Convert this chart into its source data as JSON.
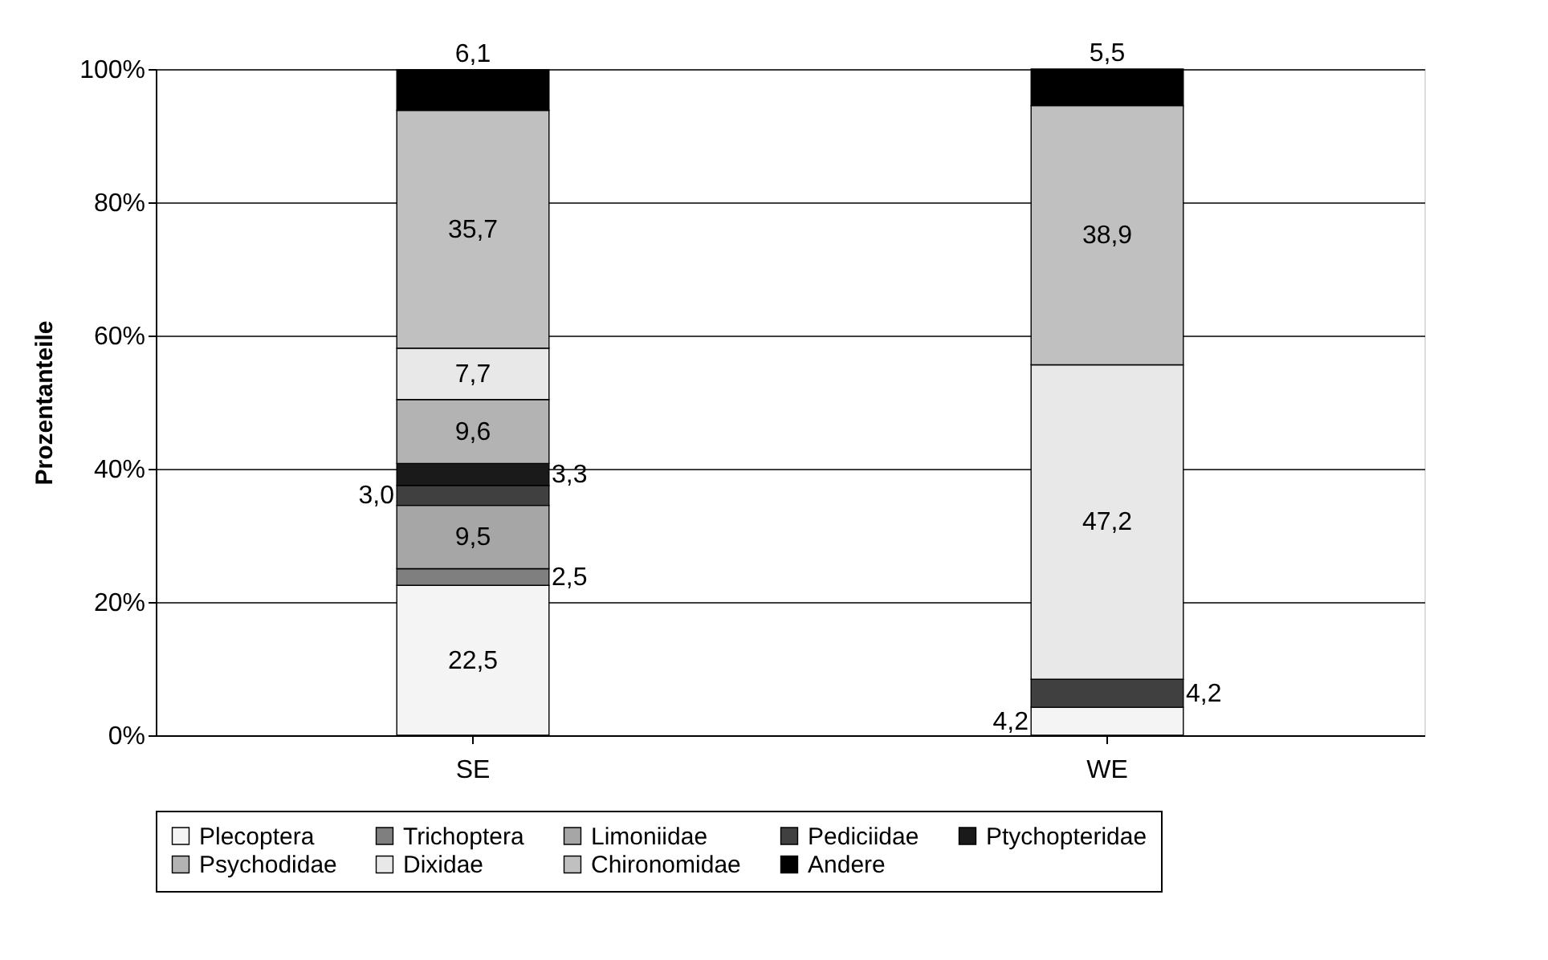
{
  "chart_data": {
    "type": "bar",
    "stacked": true,
    "ylabel": "Prozentanteile",
    "categories": [
      "SE",
      "WE"
    ],
    "series": [
      {
        "name": "Plecoptera",
        "color": "#f4f4f4",
        "values": [
          22.5,
          4.2
        ],
        "value_labels": [
          "22,5",
          "4,2"
        ]
      },
      {
        "name": "Trichoptera",
        "color": "#7f7f7f",
        "values": [
          2.5,
          null
        ],
        "value_labels": [
          "2,5",
          null
        ]
      },
      {
        "name": "Limoniidae",
        "color": "#a6a6a6",
        "values": [
          9.5,
          null
        ],
        "value_labels": [
          "9,5",
          null
        ]
      },
      {
        "name": "Pediciidae",
        "color": "#404040",
        "values": [
          3.0,
          4.2
        ],
        "value_labels": [
          "3,0",
          "4,2"
        ]
      },
      {
        "name": "Ptychopteridae",
        "color": "#1a1a1a",
        "values": [
          3.3,
          null
        ],
        "value_labels": [
          "3,3",
          null
        ]
      },
      {
        "name": "Psychodidae",
        "color": "#b3b3b3",
        "values": [
          9.6,
          null
        ],
        "value_labels": [
          "9,6",
          null
        ]
      },
      {
        "name": "Dixidae",
        "color": "#e8e8e8",
        "values": [
          7.7,
          47.2
        ],
        "value_labels": [
          "7,7",
          "47,2"
        ]
      },
      {
        "name": "Chironomidae",
        "color": "#c0c0c0",
        "values": [
          35.7,
          38.9
        ],
        "value_labels": [
          "35,7",
          "38,9"
        ]
      },
      {
        "name": "Andere",
        "color": "#000000",
        "values": [
          6.1,
          5.5
        ],
        "value_labels": [
          "6,1",
          "5,5"
        ]
      }
    ],
    "ylim": [
      0,
      100
    ],
    "yticks": [
      {
        "value": 0,
        "label": "0%"
      },
      {
        "value": 20,
        "label": "20%"
      },
      {
        "value": 40,
        "label": "40%"
      },
      {
        "value": 60,
        "label": "60%"
      },
      {
        "value": 80,
        "label": "80%"
      },
      {
        "value": 100,
        "label": "100%"
      }
    ],
    "grid": "y",
    "legend": "bottom"
  }
}
